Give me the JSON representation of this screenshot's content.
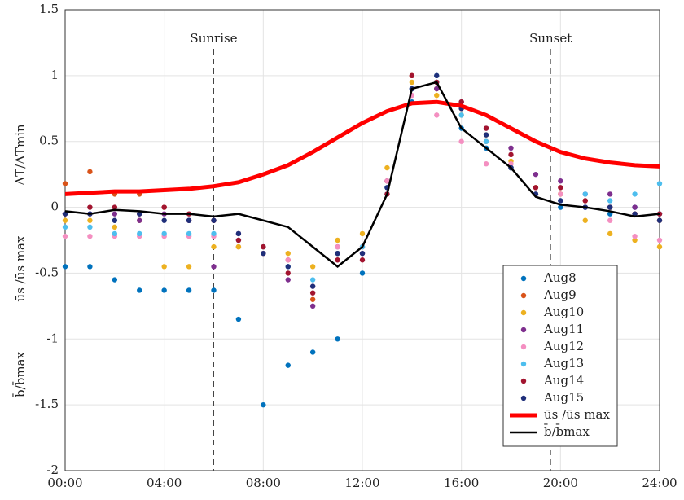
{
  "chart_data": {
    "type": "scatter",
    "ylabel": [
      "ΔT/ΔTmin",
      "ūs /ūs max",
      "b̄/b̄max"
    ],
    "x": [
      0,
      1,
      2,
      3,
      4,
      5,
      6,
      7,
      8,
      9,
      10,
      11,
      12,
      13,
      14,
      15,
      16,
      17,
      18,
      19,
      20,
      21,
      22,
      23,
      24
    ],
    "xlim": [
      0,
      24
    ],
    "xticks": [
      {
        "value": 0,
        "label": "00:00"
      },
      {
        "value": 4,
        "label": "04:00"
      },
      {
        "value": 8,
        "label": "08:00"
      },
      {
        "value": 12,
        "label": "12:00"
      },
      {
        "value": 16,
        "label": "16:00"
      },
      {
        "value": 20,
        "label": "20:00"
      },
      {
        "value": 24,
        "label": "24:00"
      }
    ],
    "ylim": [
      -2,
      1.5
    ],
    "yticks": [
      -2,
      -1.5,
      -1,
      -0.5,
      0,
      0.5,
      1,
      1.5
    ],
    "grid": true,
    "legend": "lower right",
    "annotations": [
      {
        "text": "Sunrise",
        "x": 6
      },
      {
        "text": "Sunset",
        "x": 19.6
      }
    ],
    "series": [
      {
        "name": "Aug8",
        "color": "#0072bd",
        "values": [
          -0.45,
          -0.45,
          -0.55,
          -0.63,
          -0.63,
          -0.63,
          -0.63,
          -0.85,
          -1.5,
          -1.2,
          -1.1,
          -1.0,
          -0.5,
          0.1,
          0.8,
          0.95,
          0.6,
          0.45,
          0.3,
          0.1,
          0,
          0,
          -0.05,
          0,
          -0.05
        ]
      },
      {
        "name": "Aug9",
        "color": "#d95319",
        "values": [
          0.18,
          0.27,
          0.1,
          0.1,
          0,
          -0.1,
          -0.1,
          -0.3,
          -0.35,
          -0.4,
          -0.7,
          -0.35,
          -0.3,
          0.2,
          1.0,
          0.9,
          0.75,
          0.5,
          0.3,
          0.1,
          0.1,
          0.05,
          0,
          -0.05,
          -0.1
        ]
      },
      {
        "name": "Aug10",
        "color": "#edb120",
        "values": [
          -0.1,
          -0.1,
          -0.15,
          -0.1,
          -0.45,
          -0.45,
          -0.3,
          -0.3,
          -0.3,
          -0.35,
          -0.45,
          -0.25,
          -0.2,
          0.3,
          0.95,
          0.85,
          0.7,
          0.55,
          0.35,
          0.15,
          0.1,
          -0.1,
          -0.2,
          -0.25,
          -0.3
        ]
      },
      {
        "name": "Aug11",
        "color": "#7e2f8e",
        "values": [
          -0.05,
          -0.05,
          -0.05,
          -0.1,
          -0.05,
          -0.1,
          -0.45,
          -0.2,
          -0.3,
          -0.55,
          -0.75,
          -0.3,
          -0.35,
          0.2,
          0.9,
          0.9,
          0.8,
          0.6,
          0.45,
          0.25,
          0.2,
          0.1,
          0.1,
          0,
          -0.05
        ]
      },
      {
        "name": "Aug12",
        "color": "#f48fc1",
        "values": [
          -0.22,
          -0.22,
          -0.22,
          -0.22,
          -0.22,
          -0.22,
          -0.22,
          -0.25,
          -0.35,
          -0.4,
          -0.6,
          -0.3,
          -0.3,
          0.2,
          0.85,
          0.7,
          0.5,
          0.33,
          0.33,
          0.1,
          0.1,
          0,
          -0.1,
          -0.22,
          -0.25
        ]
      },
      {
        "name": "Aug13",
        "color": "#4dbeee",
        "values": [
          -0.15,
          -0.15,
          -0.2,
          -0.2,
          -0.2,
          -0.2,
          -0.2,
          -0.25,
          -0.3,
          -0.45,
          -0.55,
          -0.35,
          -0.3,
          0.15,
          0.9,
          1.0,
          0.7,
          0.5,
          0.3,
          0.1,
          0.05,
          0.1,
          0.05,
          0.1,
          0.18
        ]
      },
      {
        "name": "Aug14",
        "color": "#a2142f",
        "values": [
          -0.05,
          0,
          0,
          -0.05,
          0,
          -0.05,
          -0.1,
          -0.25,
          -0.3,
          -0.5,
          -0.65,
          -0.4,
          -0.4,
          0.1,
          1.0,
          0.95,
          0.8,
          0.6,
          0.4,
          0.15,
          0.15,
          0.05,
          0,
          -0.05,
          -0.05
        ]
      },
      {
        "name": "Aug15",
        "color": "#1f2f7a",
        "values": [
          -0.05,
          -0.05,
          -0.1,
          -0.05,
          -0.1,
          -0.1,
          -0.1,
          -0.2,
          -0.35,
          -0.45,
          -0.6,
          -0.35,
          -0.35,
          0.15,
          0.9,
          1.0,
          0.75,
          0.55,
          0.3,
          0.1,
          0.05,
          0,
          0,
          -0.05,
          -0.1
        ]
      },
      {
        "name": "ūs /ūs max",
        "type": "line",
        "color": "#ff0000",
        "values": [
          0.1,
          0.11,
          0.12,
          0.12,
          0.13,
          0.14,
          0.16,
          0.19,
          0.25,
          0.32,
          0.42,
          0.53,
          0.64,
          0.73,
          0.79,
          0.8,
          0.77,
          0.7,
          0.6,
          0.5,
          0.42,
          0.37,
          0.34,
          0.32,
          0.31
        ]
      },
      {
        "name": "b̄/b̄max",
        "type": "line",
        "color": "#000000",
        "values": [
          -0.03,
          -0.05,
          -0.02,
          -0.03,
          -0.05,
          -0.05,
          -0.07,
          -0.05,
          -0.1,
          -0.15,
          -0.3,
          -0.45,
          -0.3,
          0.1,
          0.9,
          0.95,
          0.6,
          0.45,
          0.3,
          0.08,
          0.02,
          0,
          -0.03,
          -0.07,
          -0.05
        ]
      }
    ]
  }
}
